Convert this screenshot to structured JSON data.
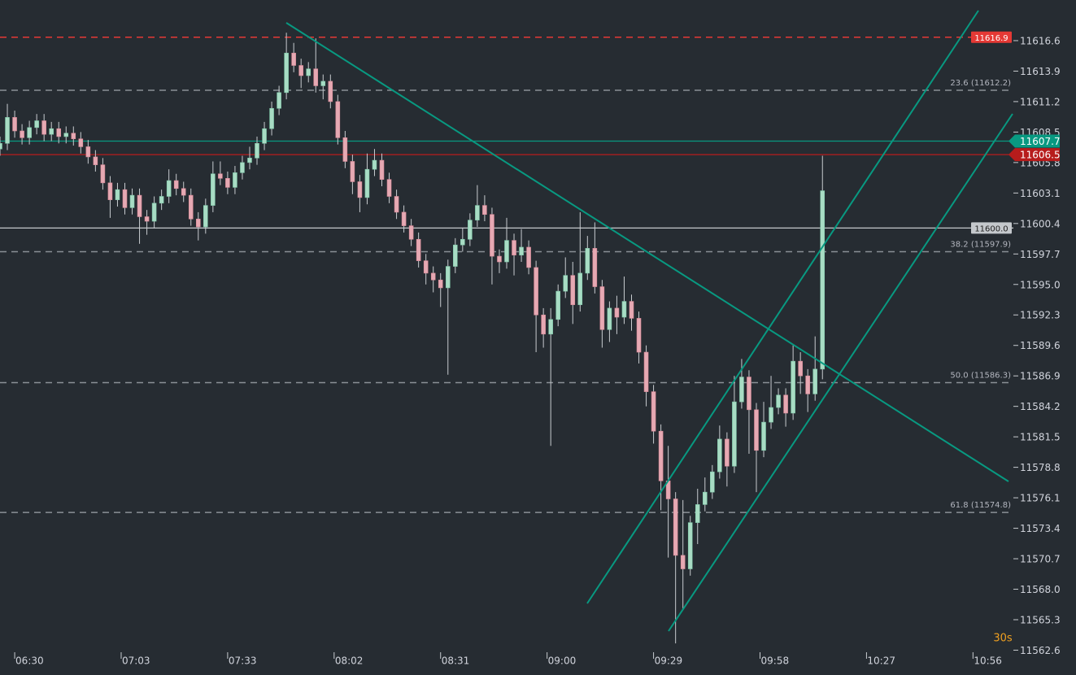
{
  "chart_data": {
    "type": "candlestick",
    "interval": "30s",
    "xlim": [
      386,
      662
    ],
    "ylim": [
      11560.4,
      11620.2
    ],
    "xticks": [
      {
        "value": 390,
        "label": "06:30"
      },
      {
        "value": 419,
        "label": "07:03"
      },
      {
        "value": 448,
        "label": "07:33"
      },
      {
        "value": 477,
        "label": "08:02"
      },
      {
        "value": 506,
        "label": "08:31"
      },
      {
        "value": 535,
        "label": "09:00"
      },
      {
        "value": 564,
        "label": "09:29"
      },
      {
        "value": 593,
        "label": "09:58"
      },
      {
        "value": 622,
        "label": "10:27"
      },
      {
        "value": 651,
        "label": "10:56"
      }
    ],
    "yticks": [
      11616.6,
      11613.9,
      11611.2,
      11608.5,
      11605.8,
      11603.1,
      11600.4,
      11597.7,
      {
        "value": 11595,
        "label": "11595.0"
      },
      11592.3,
      11589.6,
      11586.9,
      11584.2,
      11581.5,
      11578.8,
      11576.1,
      11573.4,
      11570.7,
      {
        "value": 11568,
        "label": "11568.0"
      },
      11565.3,
      11562.6
    ],
    "up_color": "#a8dcc4",
    "down_color": "#e6a9b3",
    "wick_color": "#c8ccd0",
    "x": [
      386,
      388,
      390,
      392,
      394,
      396,
      398,
      400,
      402,
      404,
      406,
      408,
      410,
      412,
      414,
      416,
      418,
      420,
      422,
      424,
      426,
      428,
      430,
      432,
      434,
      436,
      438,
      440,
      442,
      444,
      446,
      448,
      450,
      452,
      454,
      456,
      458,
      460,
      462,
      464,
      466,
      468,
      470,
      472,
      474,
      476,
      478,
      480,
      482,
      484,
      486,
      488,
      490,
      492,
      494,
      496,
      498,
      500,
      502,
      504,
      506,
      508,
      510,
      512,
      514,
      516,
      518,
      520,
      522,
      524,
      526,
      528,
      530,
      532,
      534,
      536,
      538,
      540,
      542,
      544,
      546,
      548,
      550,
      552,
      554,
      556,
      558,
      560,
      562,
      564,
      566,
      568,
      570,
      572,
      574,
      576,
      578,
      580,
      582,
      584,
      586,
      588,
      590,
      592,
      594,
      596,
      598,
      600,
      602,
      604,
      606,
      608,
      610
    ],
    "open": [
      11607.0,
      11607.5,
      11609.8,
      11608.6,
      11608.0,
      11608.9,
      11609.5,
      11608.3,
      11608.8,
      11608.1,
      11608.4,
      11607.9,
      11607.2,
      11606.3,
      11605.6,
      11604.0,
      11602.5,
      11603.4,
      11601.8,
      11602.9,
      11601.0,
      11600.6,
      11602.2,
      11602.8,
      11604.2,
      11603.5,
      11602.9,
      11600.8,
      11600.1,
      11602.0,
      11604.8,
      11604.4,
      11603.6,
      11604.9,
      11605.8,
      11606.2,
      11607.5,
      11608.8,
      11610.6,
      11612.0,
      11615.5,
      11614.4,
      11613.5,
      11614.1,
      11612.6,
      11613.0,
      11611.2,
      11608.0,
      11605.9,
      11604.1,
      11602.7,
      11605.2,
      11606.0,
      11604.3,
      11602.8,
      11601.4,
      11600.2,
      11599.0,
      11597.1,
      11596.0,
      11595.4,
      11594.7,
      11596.6,
      11598.5,
      11599.0,
      11600.7,
      11602.0,
      11601.2,
      11597.5,
      11597.0,
      11598.9,
      11597.6,
      11598.3,
      11596.5,
      11592.3,
      11590.6,
      11591.9,
      11594.4,
      11595.8,
      11593.2,
      11596.0,
      11598.2,
      11594.8,
      11591.0,
      11592.9,
      11592.1,
      11593.5,
      11592.0,
      11589.0,
      11585.5,
      11582.0,
      11577.6,
      11576.0,
      11571.0,
      11569.8,
      11573.9,
      11575.5,
      11576.6,
      11578.4,
      11581.3,
      11578.9,
      11584.6,
      11586.8,
      11583.9,
      11580.3,
      11582.8,
      11584.1,
      11585.2,
      11583.6,
      11588.2,
      11586.9,
      11585.3,
      11587.5
    ],
    "high": [
      11608.1,
      11611.0,
      11610.4,
      11609.2,
      11609.5,
      11610.1,
      11610.1,
      11609.4,
      11609.4,
      11609.0,
      11609.0,
      11608.5,
      11607.8,
      11606.9,
      11606.2,
      11604.6,
      11604.0,
      11604.0,
      11603.5,
      11603.5,
      11601.6,
      11602.8,
      11603.4,
      11605.2,
      11604.8,
      11604.1,
      11603.5,
      11601.4,
      11602.6,
      11605.9,
      11605.9,
      11605.0,
      11605.5,
      11606.4,
      11607.2,
      11608.1,
      11609.4,
      11611.2,
      11612.6,
      11617.3,
      11616.4,
      11615.0,
      11614.7,
      11616.8,
      11613.6,
      11613.6,
      11611.8,
      11608.6,
      11606.5,
      11604.7,
      11606.6,
      11607.0,
      11606.6,
      11604.9,
      11603.4,
      11602.0,
      11600.8,
      11599.6,
      11597.7,
      11596.6,
      11596.0,
      11597.2,
      11599.1,
      11600.0,
      11601.3,
      11603.8,
      11602.9,
      11601.8,
      11598.1,
      11600.9,
      11599.5,
      11599.9,
      11598.9,
      11597.1,
      11592.9,
      11592.9,
      11595.0,
      11597.4,
      11597.0,
      11601.4,
      11599.3,
      11600.5,
      11595.4,
      11593.5,
      11594.0,
      11595.7,
      11594.1,
      11592.6,
      11589.6,
      11586.1,
      11582.6,
      11580.7,
      11576.6,
      11575.9,
      11574.5,
      11576.9,
      11577.9,
      11579.0,
      11582.5,
      11581.9,
      11586.9,
      11588.4,
      11587.4,
      11584.5,
      11584.6,
      11586.9,
      11585.8,
      11585.8,
      11589.6,
      11589.0,
      11587.5,
      11590.4,
      11606.4
    ],
    "low": [
      11606.4,
      11606.9,
      11608.0,
      11607.4,
      11607.4,
      11608.3,
      11607.7,
      11607.7,
      11607.5,
      11607.5,
      11607.3,
      11606.6,
      11605.7,
      11605.0,
      11603.4,
      11600.9,
      11601.9,
      11601.2,
      11601.2,
      11598.6,
      11599.4,
      11600.0,
      11601.6,
      11602.2,
      11602.9,
      11602.3,
      11600.2,
      11598.9,
      11599.5,
      11601.4,
      11603.8,
      11603.0,
      11603.0,
      11604.3,
      11605.2,
      11605.6,
      11606.9,
      11608.2,
      11610.0,
      11611.4,
      11613.8,
      11612.4,
      11612.9,
      11612.0,
      11611.4,
      11610.6,
      11607.4,
      11605.3,
      11603.0,
      11601.4,
      11602.1,
      11604.6,
      11603.7,
      11602.2,
      11600.8,
      11599.6,
      11598.4,
      11596.5,
      11595.0,
      11594.3,
      11593.0,
      11587.0,
      11596.0,
      11597.9,
      11598.4,
      11600.1,
      11600.6,
      11595.0,
      11596.0,
      11596.4,
      11595.8,
      11597.0,
      11595.9,
      11589.0,
      11589.4,
      11580.7,
      11591.3,
      11593.8,
      11591.5,
      11592.6,
      11595.4,
      11594.2,
      11589.4,
      11589.9,
      11590.6,
      11591.5,
      11590.9,
      11588.0,
      11584.2,
      11580.9,
      11575.0,
      11570.8,
      11563.2,
      11566.2,
      11569.2,
      11572.0,
      11574.9,
      11576.0,
      11577.8,
      11577.1,
      11578.3,
      11584.0,
      11580.0,
      11576.6,
      11579.7,
      11582.2,
      11583.5,
      11582.4,
      11583.0,
      11585.3,
      11583.7,
      11584.7,
      11586.6
    ],
    "close": [
      11607.5,
      11609.8,
      11608.6,
      11608.0,
      11608.9,
      11609.5,
      11608.3,
      11608.8,
      11608.1,
      11608.4,
      11607.9,
      11607.2,
      11606.3,
      11605.6,
      11604.0,
      11602.5,
      11603.4,
      11601.8,
      11602.9,
      11601.0,
      11600.6,
      11602.2,
      11602.8,
      11604.2,
      11603.5,
      11602.9,
      11600.8,
      11600.1,
      11602.0,
      11604.8,
      11604.4,
      11603.6,
      11604.9,
      11605.8,
      11606.2,
      11607.5,
      11608.8,
      11610.6,
      11612.0,
      11615.5,
      11614.4,
      11613.5,
      11614.1,
      11612.6,
      11613.0,
      11611.2,
      11608.0,
      11605.9,
      11604.1,
      11602.7,
      11605.2,
      11606.0,
      11604.3,
      11602.8,
      11601.4,
      11600.2,
      11599.0,
      11597.1,
      11596.0,
      11595.4,
      11594.7,
      11596.6,
      11598.5,
      11599.0,
      11600.7,
      11602.0,
      11601.2,
      11597.5,
      11597.0,
      11598.9,
      11597.6,
      11598.3,
      11596.5,
      11592.3,
      11590.6,
      11591.9,
      11594.4,
      11595.8,
      11593.2,
      11596.0,
      11598.2,
      11594.8,
      11591.0,
      11592.9,
      11592.1,
      11593.5,
      11592.0,
      11589.0,
      11585.5,
      11582.0,
      11577.6,
      11576.0,
      11571.0,
      11569.8,
      11573.9,
      11575.5,
      11576.6,
      11578.4,
      11581.3,
      11578.9,
      11584.6,
      11586.8,
      11583.9,
      11580.3,
      11582.8,
      11584.1,
      11585.2,
      11583.6,
      11588.2,
      11586.9,
      11585.3,
      11587.5,
      11603.3
    ],
    "price_lines": [
      {
        "value": 11616.9,
        "color": "#e53935",
        "dash": true,
        "box": "plot"
      },
      {
        "value": 11612.2,
        "label": "23.6 (11612.2)",
        "color": "#8a9096",
        "dash": true
      },
      {
        "value": 11607.7,
        "color": "#089981",
        "dash": false,
        "box": "axis"
      },
      {
        "value": 11606.5,
        "color": "#b71c1c",
        "dash": false,
        "box": "axis"
      },
      {
        "value": 11600,
        "label": "11600.0",
        "color": "#c4c8cc",
        "dash": false,
        "box": "plot"
      },
      {
        "value": 11597.9,
        "label": "38.2 (11597.9)",
        "color": "#8a9096",
        "dash": true
      },
      {
        "value": 11586.3,
        "label": "50.0 (11586.3)",
        "color": "#8a9096",
        "dash": true
      },
      {
        "value": 11574.8,
        "label": "61.8 (11574.8)",
        "color": "#8a9096",
        "dash": true
      }
    ]
  }
}
